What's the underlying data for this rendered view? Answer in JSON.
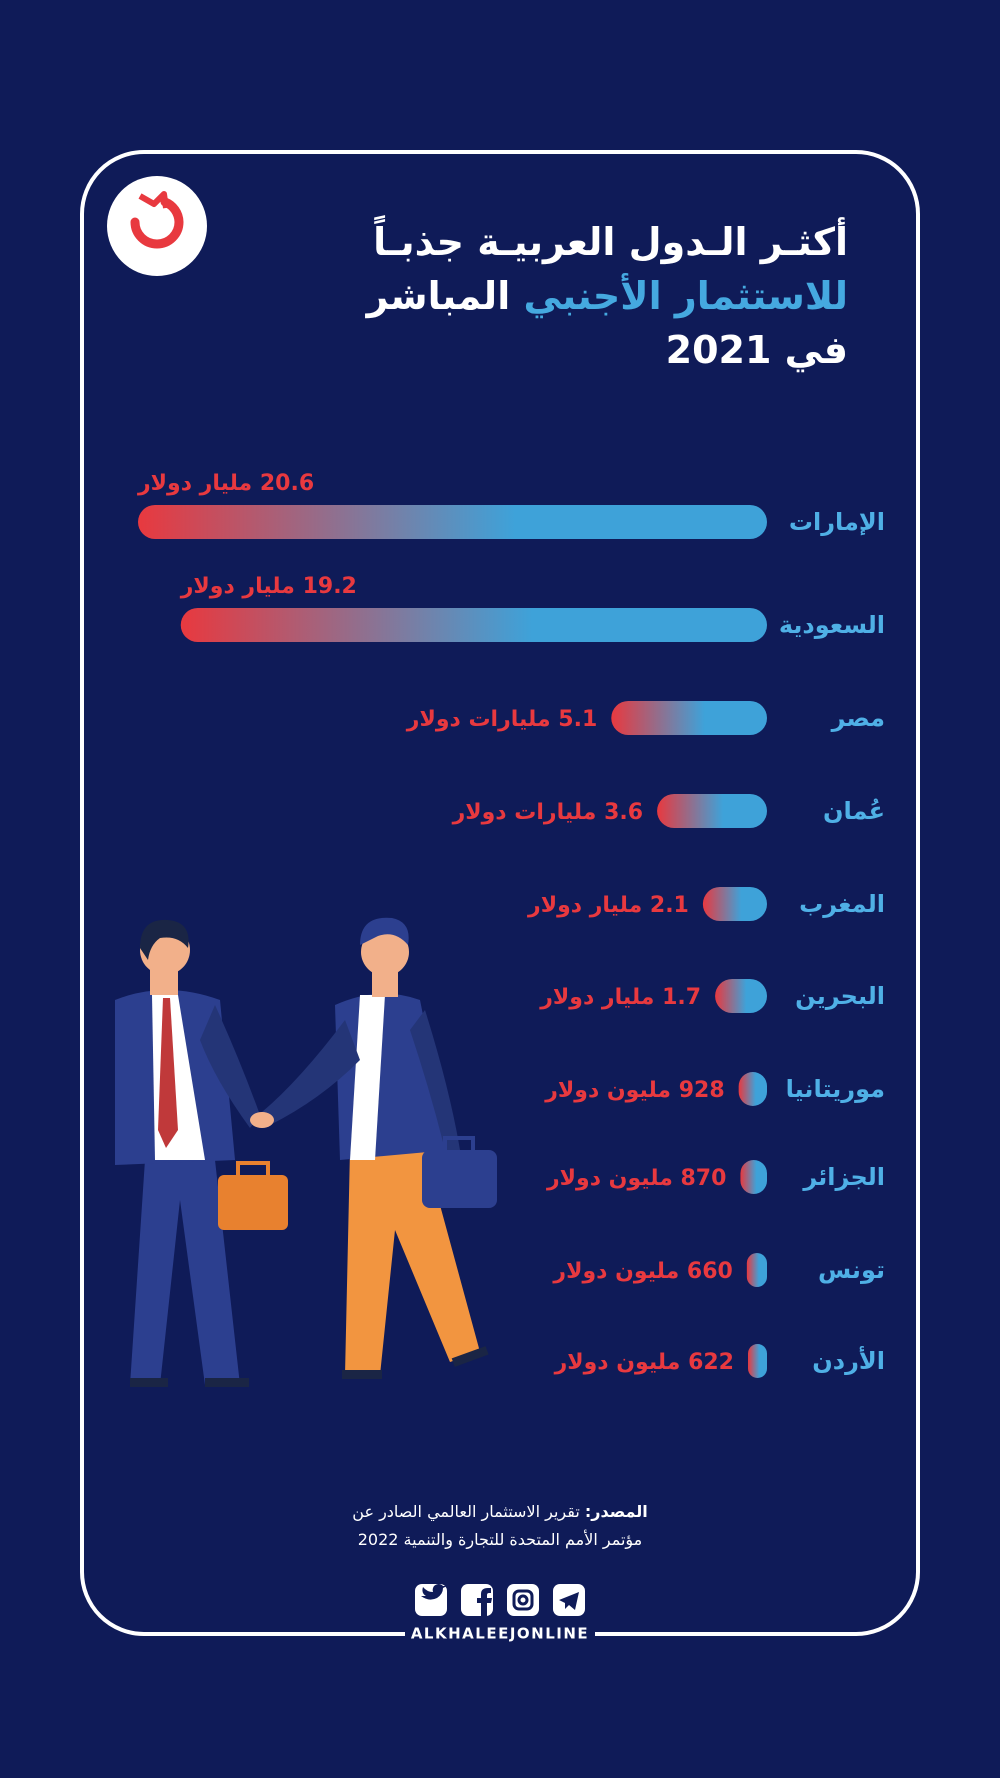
{
  "title": [
    "أكثـر الـدول العربيـة جذبـاً",
    "للاستثمار الأجنبي",
    "المباشر",
    "في 2021"
  ],
  "chart_data": {
    "type": "bar",
    "categories": [
      "الإمارات",
      "السعودية",
      "مصر",
      "عُمان",
      "المغرب",
      "البحرين",
      "موريتانيا",
      "الجزائر",
      "تونس",
      "الأردن"
    ],
    "values": [
      20600,
      19200,
      5100,
      3600,
      2100,
      1700,
      928,
      870,
      660,
      622
    ],
    "value_labels": [
      "20.6 مليار دولار",
      "19.2 مليار دولار",
      "5.1 مليارات دولار",
      "3.6 مليارات دولار",
      "2.1 مليار دولار",
      "1.7 مليار دولار",
      "928 مليون دولار",
      "870 مليون دولار",
      "660 مليون دولار",
      "622 مليون دولار"
    ],
    "gradient": [
      "#e8393f",
      "#3ea2d9"
    ]
  },
  "source": {
    "label": "المصدر:",
    "lines": [
      "تقرير الاستثمار العالمي الصادر عن",
      "مؤتمر الأمم المتحدة للتجارة والتنمية 2022"
    ]
  },
  "brand": "ALKHALEEJONLINE"
}
